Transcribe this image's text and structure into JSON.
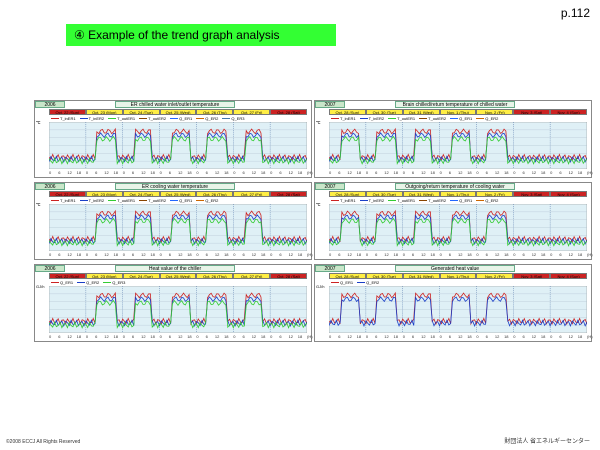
{
  "page_number": "p.112",
  "slide_title": "④ Example of the trend graph analysis",
  "footer_left": "©2008  ECCJ All Rights Reserved",
  "footer_right": "財団法人 省エネルギーセンター",
  "x_ticks": [
    "0",
    "6",
    "12",
    "18",
    "0",
    "6",
    "12",
    "18",
    "0",
    "6",
    "12",
    "18",
    "0",
    "6",
    "12",
    "18",
    "0",
    "6",
    "12",
    "18",
    "0",
    "6",
    "12",
    "18",
    "0",
    "6",
    "12",
    "18"
  ],
  "x_unit": "(H)",
  "colors": {
    "red": "#cc2222",
    "yellow": "#ffee44",
    "blue": "#1a3fc8",
    "green": "#33cc33",
    "plot_bg": "#dff0f6"
  },
  "panels": [
    {
      "year": "2006",
      "title": "ER chilled water inlet/outlet temperature",
      "unit": "℃",
      "days": [
        {
          "label": "Oct. 22 (Sun)",
          "color": "red"
        },
        {
          "label": "Oct. 23 (Mon)",
          "color": "yellow"
        },
        {
          "label": "Oct. 24 (Tue)",
          "color": "yellow"
        },
        {
          "label": "Oct. 25 (Wed)",
          "color": "yellow"
        },
        {
          "label": "Oct. 26 (Thu)",
          "color": "yellow"
        },
        {
          "label": "Oct. 27 (Fri)",
          "color": "yellow"
        },
        {
          "label": "Oct. 28 (Sat)",
          "color": "red"
        }
      ],
      "legend": [
        "T_inER1",
        "T_inER2",
        "T_outER1",
        "T_outER2",
        "Q_ER1",
        "Q_ER2",
        "Q_ER3"
      ]
    },
    {
      "year": "2007",
      "title": "Brain chilled/return temperature of chilled water",
      "unit": "℃",
      "days": [
        {
          "label": "Oct. 28 (Sun)",
          "color": "yellow"
        },
        {
          "label": "Oct. 30 (Tue)",
          "color": "yellow"
        },
        {
          "label": "Oct. 31 (Wed)",
          "color": "yellow"
        },
        {
          "label": "Nov. 1 (Thu)",
          "color": "yellow"
        },
        {
          "label": "Nov. 2 (Fri)",
          "color": "yellow"
        },
        {
          "label": "Nov. 3 (Sat)",
          "color": "red"
        },
        {
          "label": "Nov. 4 (Sun)",
          "color": "red"
        }
      ],
      "legend": [
        "T_inER1",
        "T_inER2",
        "T_outER1",
        "T_outER2",
        "Q_ER1",
        "Q_ER2"
      ]
    },
    {
      "year": "2006",
      "title": "ER cooling water temperature",
      "unit": "℃",
      "days": [
        {
          "label": "Oct. 22 (Sun)",
          "color": "red"
        },
        {
          "label": "Oct. 23 (Mon)",
          "color": "yellow"
        },
        {
          "label": "Oct. 24 (Tue)",
          "color": "yellow"
        },
        {
          "label": "Oct. 25 (Wed)",
          "color": "yellow"
        },
        {
          "label": "Oct. 26 (Thu)",
          "color": "yellow"
        },
        {
          "label": "Oct. 27 (Fri)",
          "color": "yellow"
        },
        {
          "label": "Oct. 28 (Sat)",
          "color": "red"
        }
      ],
      "legend": [
        "T_inER1",
        "T_inER2",
        "T_outER1",
        "T_outER2",
        "Q_ER1",
        "Q_ER2"
      ]
    },
    {
      "year": "2007",
      "title": "Outgoing/return temperature of cooling water",
      "unit": "℃",
      "days": [
        {
          "label": "Oct. 28 (Sun)",
          "color": "yellow"
        },
        {
          "label": "Oct. 30 (Tue)",
          "color": "yellow"
        },
        {
          "label": "Oct. 31 (Wed)",
          "color": "yellow"
        },
        {
          "label": "Nov. 1 (Thu)",
          "color": "yellow"
        },
        {
          "label": "Nov. 2 (Fri)",
          "color": "yellow"
        },
        {
          "label": "Nov. 3 (Sat)",
          "color": "red"
        },
        {
          "label": "Nov. 4 (Sun)",
          "color": "red"
        }
      ],
      "legend": [
        "T_inER1",
        "T_inER2",
        "T_outER1",
        "T_outER2",
        "Q_ER1",
        "Q_ER2"
      ]
    },
    {
      "year": "2006",
      "title": "Heat value of the chiller",
      "unit": "GJ/h",
      "days": [
        {
          "label": "Oct. 22 (Sun)",
          "color": "red"
        },
        {
          "label": "Oct. 23 (Mon)",
          "color": "yellow"
        },
        {
          "label": "Oct. 24 (Tue)",
          "color": "yellow"
        },
        {
          "label": "Oct. 25 (Wed)",
          "color": "yellow"
        },
        {
          "label": "Oct. 26 (Thu)",
          "color": "yellow"
        },
        {
          "label": "Oct. 27 (Fri)",
          "color": "yellow"
        },
        {
          "label": "Oct. 28 (Sat)",
          "color": "red"
        }
      ],
      "legend": [
        "Q_ER1",
        "Q_ER2",
        "Q_ER3"
      ]
    },
    {
      "year": "2007",
      "title": "Generated heat value",
      "unit": "GJ/h",
      "days": [
        {
          "label": "Oct. 28 (Sun)",
          "color": "yellow"
        },
        {
          "label": "Oct. 30 (Tue)",
          "color": "yellow"
        },
        {
          "label": "Oct. 31 (Wed)",
          "color": "yellow"
        },
        {
          "label": "Nov. 1 (Thu)",
          "color": "yellow"
        },
        {
          "label": "Nov. 2 (Fri)",
          "color": "yellow"
        },
        {
          "label": "Nov. 3 (Sat)",
          "color": "red"
        },
        {
          "label": "Nov. 4 (Sun)",
          "color": "red"
        }
      ],
      "legend": [
        "Q_ER1",
        "Q_ER2"
      ]
    }
  ]
}
